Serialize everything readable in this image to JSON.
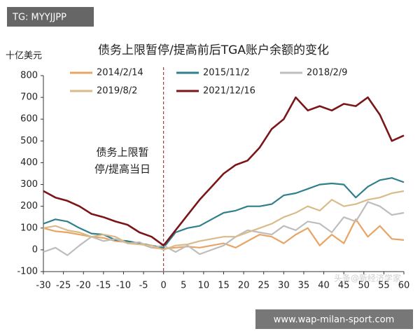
{
  "badge": "TG: MYYJJPP",
  "watermark": "www.wap-milan-sport.com",
  "faint_watermark": "头条@新经济学家",
  "chart_data": {
    "type": "line",
    "title": "债务上限暂停/提高前后TGA账户余额的变化",
    "y_label": "十亿美元",
    "annotation": [
      "债务上限暂",
      "停/提高当日"
    ],
    "x": [
      -30,
      -27,
      -24,
      -21,
      -18,
      -15,
      -12,
      -9,
      -6,
      -3,
      0,
      3,
      6,
      9,
      12,
      15,
      18,
      21,
      24,
      27,
      30,
      33,
      36,
      39,
      42,
      45,
      48,
      51,
      54,
      57,
      60
    ],
    "xlim": [
      -30,
      60
    ],
    "xticks": [
      -30,
      -25,
      -20,
      -15,
      -10,
      -5,
      0,
      5,
      10,
      15,
      20,
      25,
      30,
      35,
      40,
      45,
      50,
      55,
      60
    ],
    "ylim": [
      -100,
      800
    ],
    "yticks": [
      -100,
      0,
      100,
      200,
      300,
      400,
      500,
      600,
      700,
      800
    ],
    "grid": false,
    "series": [
      {
        "name": "2014/2/14",
        "color": "#e8a465",
        "values": [
          100,
          85,
          80,
          70,
          60,
          55,
          40,
          35,
          30,
          10,
          5,
          10,
          15,
          10,
          20,
          30,
          10,
          40,
          70,
          60,
          30,
          70,
          100,
          20,
          70,
          30,
          140,
          60,
          110,
          50,
          45
        ]
      },
      {
        "name": "2015/11/2",
        "color": "#2f7f8c",
        "values": [
          120,
          140,
          130,
          100,
          75,
          70,
          45,
          40,
          30,
          20,
          10,
          80,
          100,
          110,
          140,
          170,
          180,
          200,
          200,
          210,
          250,
          260,
          280,
          300,
          305,
          300,
          240,
          290,
          320,
          330,
          310
        ]
      },
      {
        "name": "2018/2/9",
        "color": "#bdbdbd",
        "values": [
          -10,
          10,
          -25,
          20,
          60,
          40,
          50,
          30,
          35,
          10,
          20,
          -10,
          20,
          -20,
          0,
          20,
          60,
          90,
          80,
          70,
          110,
          90,
          130,
          120,
          80,
          150,
          130,
          220,
          200,
          160,
          170
        ]
      },
      {
        "name": "2019/8/2",
        "color": "#d9bb8a",
        "values": [
          100,
          110,
          90,
          80,
          60,
          70,
          60,
          30,
          25,
          20,
          0,
          20,
          25,
          40,
          50,
          60,
          60,
          80,
          100,
          120,
          150,
          170,
          200,
          180,
          230,
          200,
          210,
          230,
          240,
          260,
          270
        ]
      },
      {
        "name": "2021/12/16",
        "color": "#7a1518",
        "values": [
          270,
          240,
          225,
          200,
          165,
          150,
          130,
          115,
          80,
          60,
          20,
          90,
          160,
          230,
          290,
          350,
          390,
          410,
          470,
          555,
          600,
          700,
          640,
          660,
          640,
          670,
          660,
          700,
          620,
          500,
          525
        ]
      }
    ]
  }
}
